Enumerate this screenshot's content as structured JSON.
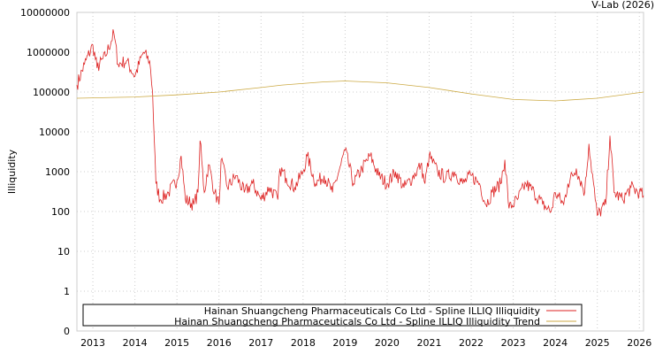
{
  "chart_data": {
    "type": "line",
    "credit": "V-Lab (2026)",
    "ylabel": "Illiquidity",
    "xlabel": "",
    "yscale": "log",
    "ylim": [
      0.1,
      10000000
    ],
    "xlim": [
      2012.62,
      2026.1
    ],
    "grid": true,
    "legend_position": "bottom",
    "y_ticks": [
      {
        "value": 10000000,
        "label": "10000000"
      },
      {
        "value": 1000000,
        "label": "1000000"
      },
      {
        "value": 100000,
        "label": "100000"
      },
      {
        "value": 10000,
        "label": "10000"
      },
      {
        "value": 1000,
        "label": "1000"
      },
      {
        "value": 100,
        "label": "100"
      },
      {
        "value": 10,
        "label": "10"
      },
      {
        "value": 1,
        "label": "1"
      },
      {
        "value": 0.1,
        "label": "0"
      }
    ],
    "x_ticks": [
      "2013",
      "2014",
      "2015",
      "2016",
      "2017",
      "2018",
      "2019",
      "2020",
      "2021",
      "2022",
      "2023",
      "2024",
      "2025",
      "2026"
    ],
    "series": [
      {
        "name": "Hainan Shuangcheng Pharmaceuticals Co Ltd - Spline ILLIQ Illiquidity",
        "color": "#dd2222",
        "points": [
          [
            2012.62,
            150000
          ],
          [
            2012.8,
            500000
          ],
          [
            2013.0,
            1500000
          ],
          [
            2013.1,
            400000
          ],
          [
            2013.3,
            800000
          ],
          [
            2013.5,
            3000000
          ],
          [
            2013.6,
            500000
          ],
          [
            2013.8,
            600000
          ],
          [
            2014.0,
            250000
          ],
          [
            2014.2,
            1000000
          ],
          [
            2014.35,
            600000
          ],
          [
            2014.42,
            100000
          ],
          [
            2014.5,
            500
          ],
          [
            2014.6,
            200
          ],
          [
            2014.8,
            300
          ],
          [
            2015.0,
            600
          ],
          [
            2015.1,
            2500
          ],
          [
            2015.2,
            200
          ],
          [
            2015.4,
            150
          ],
          [
            2015.5,
            300
          ],
          [
            2015.55,
            6000
          ],
          [
            2015.65,
            300
          ],
          [
            2015.75,
            1500
          ],
          [
            2015.9,
            300
          ],
          [
            2016.0,
            150
          ],
          [
            2016.05,
            2000
          ],
          [
            2016.2,
            400
          ],
          [
            2016.4,
            800
          ],
          [
            2016.6,
            300
          ],
          [
            2016.8,
            500
          ],
          [
            2017.0,
            200
          ],
          [
            2017.2,
            400
          ],
          [
            2017.4,
            200
          ],
          [
            2017.45,
            1200
          ],
          [
            2017.6,
            700
          ],
          [
            2017.8,
            400
          ],
          [
            2018.0,
            1000
          ],
          [
            2018.1,
            2500
          ],
          [
            2018.3,
            500
          ],
          [
            2018.5,
            800
          ],
          [
            2018.7,
            300
          ],
          [
            2018.9,
            1500
          ],
          [
            2019.0,
            3500
          ],
          [
            2019.2,
            500
          ],
          [
            2019.4,
            1200
          ],
          [
            2019.6,
            2500
          ],
          [
            2019.8,
            800
          ],
          [
            2020.0,
            500
          ],
          [
            2020.2,
            1000
          ],
          [
            2020.4,
            400
          ],
          [
            2020.6,
            700
          ],
          [
            2020.8,
            1500
          ],
          [
            2020.9,
            500
          ],
          [
            2021.0,
            2500
          ],
          [
            2021.2,
            1000
          ],
          [
            2021.4,
            700
          ],
          [
            2021.6,
            1000
          ],
          [
            2021.8,
            500
          ],
          [
            2022.0,
            800
          ],
          [
            2022.2,
            500
          ],
          [
            2022.35,
            150
          ],
          [
            2022.5,
            300
          ],
          [
            2022.7,
            500
          ],
          [
            2022.8,
            2000
          ],
          [
            2022.9,
            120
          ],
          [
            2023.1,
            200
          ],
          [
            2023.3,
            500
          ],
          [
            2023.5,
            300
          ],
          [
            2023.7,
            150
          ],
          [
            2023.9,
            100
          ],
          [
            2024.0,
            300
          ],
          [
            2024.2,
            150
          ],
          [
            2024.3,
            500
          ],
          [
            2024.5,
            1200
          ],
          [
            2024.7,
            300
          ],
          [
            2024.8,
            5000
          ],
          [
            2024.95,
            200
          ],
          [
            2025.0,
            80
          ],
          [
            2025.2,
            150
          ],
          [
            2025.3,
            8000
          ],
          [
            2025.4,
            300
          ],
          [
            2025.6,
            200
          ],
          [
            2025.8,
            400
          ],
          [
            2026.0,
            300
          ],
          [
            2026.1,
            250
          ]
        ]
      },
      {
        "name": "Hainan Shuangcheng Pharmaceuticals Co Ltd - Spline ILLIQ Illiquidity Trend",
        "color": "#ccaa44",
        "points": [
          [
            2012.62,
            70000
          ],
          [
            2014,
            75000
          ],
          [
            2015,
            85000
          ],
          [
            2016,
            100000
          ],
          [
            2017,
            130000
          ],
          [
            2017.5,
            150000
          ],
          [
            2018.5,
            180000
          ],
          [
            2019,
            190000
          ],
          [
            2020,
            170000
          ],
          [
            2021,
            130000
          ],
          [
            2022,
            90000
          ],
          [
            2023,
            65000
          ],
          [
            2024,
            60000
          ],
          [
            2025,
            70000
          ],
          [
            2026.1,
            100000
          ]
        ]
      }
    ]
  }
}
